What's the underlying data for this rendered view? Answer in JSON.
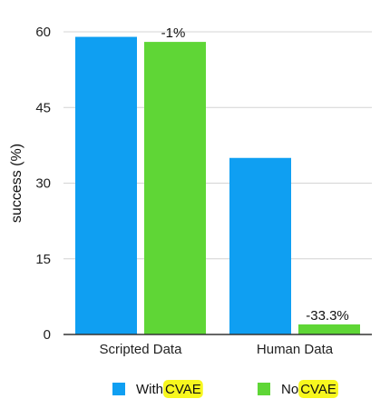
{
  "chart_data": {
    "type": "bar",
    "categories": [
      "Scripted Data",
      "Human Data"
    ],
    "series": [
      {
        "name": "With CVAE",
        "values": [
          59,
          35
        ],
        "color": "#0f9ff2"
      },
      {
        "name": "No CVAE",
        "values": [
          58,
          2
        ],
        "color": "#5fd636"
      }
    ],
    "data_labels": [
      {
        "series": 1,
        "category": 0,
        "text": "-1%"
      },
      {
        "series": 1,
        "category": 1,
        "text": "-33.3%"
      }
    ],
    "ylabel": "success (%)",
    "xlabel": "",
    "ylim": [
      0,
      60
    ],
    "yticks": [
      0,
      15,
      30,
      45,
      60
    ],
    "grid": true,
    "legend": {
      "position": "bottom",
      "items": [
        {
          "prefix": "With ",
          "highlight": "CVAE"
        },
        {
          "prefix": "No ",
          "highlight": "CVAE"
        }
      ],
      "highlight_color": "#f7f71e"
    }
  }
}
